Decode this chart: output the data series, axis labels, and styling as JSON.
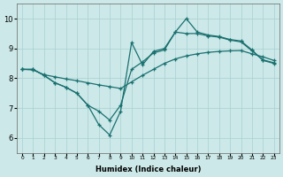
{
  "xlabel": "Humidex (Indice chaleur)",
  "background_color": "#cce8e8",
  "grid_color": "#a8d0d0",
  "line_color": "#1a7070",
  "x": [
    0,
    1,
    2,
    3,
    4,
    5,
    6,
    7,
    8,
    9,
    10,
    11,
    12,
    13,
    14,
    15,
    16,
    17,
    18,
    19,
    20,
    21,
    22,
    23
  ],
  "y_top": [
    8.3,
    8.3,
    8.1,
    7.85,
    7.7,
    7.5,
    7.1,
    6.45,
    6.1,
    6.9,
    9.2,
    8.45,
    8.9,
    9.0,
    9.55,
    10.0,
    9.55,
    9.45,
    9.4,
    9.3,
    9.25,
    8.95,
    8.6,
    8.5
  ],
  "y_mid": [
    8.3,
    8.3,
    8.1,
    7.85,
    7.7,
    7.5,
    7.1,
    6.9,
    6.6,
    7.1,
    8.3,
    8.55,
    8.85,
    8.95,
    9.55,
    9.5,
    9.5,
    9.42,
    9.38,
    9.28,
    9.22,
    8.92,
    8.62,
    8.52
  ],
  "y_bot": [
    8.3,
    8.28,
    8.12,
    8.05,
    7.98,
    7.92,
    7.85,
    7.78,
    7.72,
    7.66,
    7.88,
    8.1,
    8.3,
    8.5,
    8.65,
    8.75,
    8.82,
    8.87,
    8.9,
    8.92,
    8.93,
    8.82,
    8.72,
    8.6
  ],
  "ylim": [
    5.5,
    10.5
  ],
  "xlim": [
    -0.5,
    23.5
  ],
  "yticks": [
    6,
    7,
    8,
    9,
    10
  ]
}
